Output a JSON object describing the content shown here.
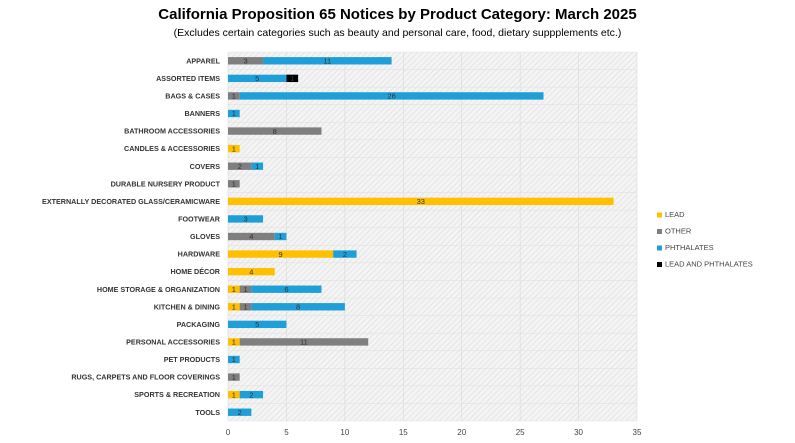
{
  "chart_data": {
    "type": "bar",
    "orientation": "horizontal",
    "stacked": true,
    "title": "California Proposition 65 Notices by Product Category: March 2025",
    "subtitle": "(Excludes certain categories such as beauty and personal care, food, dietary suppplements etc.)",
    "xlim": [
      0,
      35
    ],
    "xticks": [
      0,
      5,
      10,
      15,
      20,
      25,
      30,
      35
    ],
    "legend_position": "right",
    "categories": [
      "APPAREL",
      "ASSORTED ITEMS",
      "BAGS & CASES",
      "BANNERS",
      "BATHROOM ACCESSORIES",
      "CANDLES & ACCESSORIES",
      "COVERS",
      "DURABLE NURSERY PRODUCT",
      "EXTERNALLY DECORATED GLASS/CERAMICWARE",
      "FOOTWEAR",
      "GLOVES",
      "HARDWARE",
      "HOME DÉCOR",
      "HOME STORAGE & ORGANIZATION",
      "KITCHEN & DINING",
      "PACKAGING",
      "PERSONAL ACCESSORIES",
      "PET PRODUCTS",
      "RUGS, CARPETS AND FLOOR COVERINGS",
      "SPORTS & RECREATION",
      "TOOLS"
    ],
    "series": [
      {
        "name": "LEAD",
        "color": "#FFC000",
        "values": [
          0,
          0,
          0,
          0,
          0,
          1,
          0,
          0,
          33,
          0,
          0,
          9,
          4,
          1,
          1,
          0,
          1,
          0,
          0,
          1,
          0
        ]
      },
      {
        "name": "OTHER",
        "color": "#7F7F7F",
        "values": [
          3,
          0,
          1,
          0,
          8,
          0,
          2,
          1,
          0,
          0,
          4,
          0,
          0,
          1,
          1,
          0,
          11,
          0,
          1,
          0,
          0
        ]
      },
      {
        "name": "PHTHALATES",
        "color": "#1E9FD8",
        "values": [
          11,
          5,
          26,
          1,
          0,
          0,
          1,
          0,
          0,
          3,
          1,
          2,
          0,
          6,
          8,
          5,
          0,
          1,
          0,
          2,
          2
        ]
      },
      {
        "name": "LEAD AND PHTHALATES",
        "color": "#000000",
        "values": [
          0,
          1,
          0,
          0,
          0,
          0,
          0,
          0,
          0,
          0,
          0,
          0,
          0,
          0,
          0,
          0,
          0,
          0,
          0,
          0,
          0
        ]
      }
    ]
  }
}
